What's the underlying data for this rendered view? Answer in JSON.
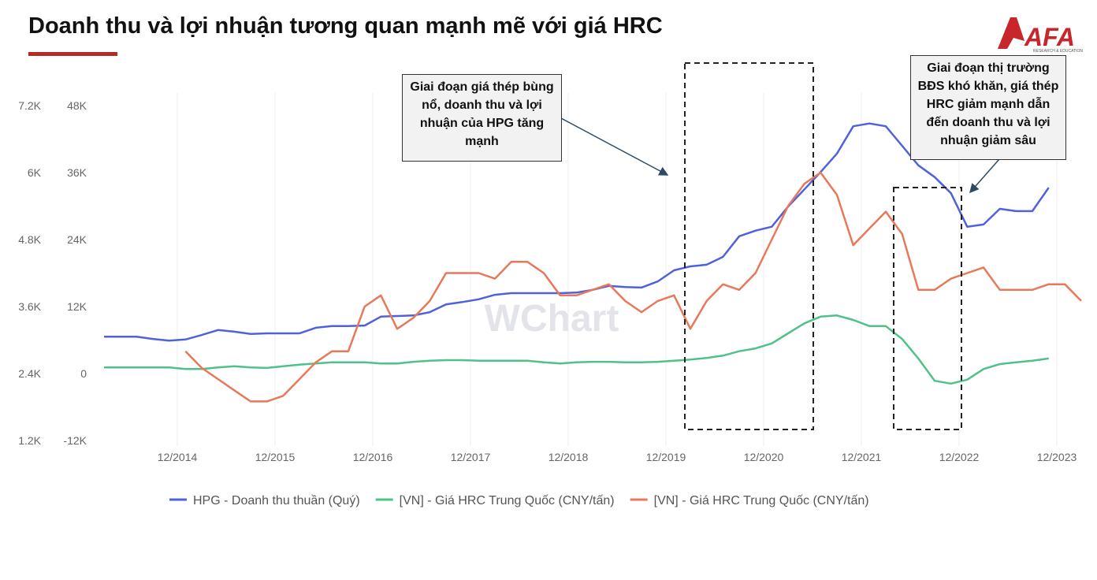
{
  "chart_data": {
    "type": "line",
    "title": "Doanh thu và lợi nhuận tương quan mạnh mẽ với giá HRC",
    "logo": "AFA",
    "logo_subtitle": "RESEARCH & EDUCATION",
    "watermark": "WChart",
    "annotations": [
      "Giai đoạn giá thép bùng nổ, doanh thu và lợi nhuận của HPG tăng mạnh",
      "Giai đoạn thị trường BĐS khó khăn, giá thép HRC giảm mạnh dẫn đến doanh thu và lợi nhuận giảm sâu"
    ],
    "x": [
      "03/2014",
      "05/2014",
      "07/2014",
      "09/2014",
      "11/2014",
      "01/2015",
      "03/2015",
      "05/2015",
      "07/2015",
      "09/2015",
      "11/2015",
      "01/2016",
      "03/2016",
      "05/2016",
      "07/2016",
      "09/2016",
      "11/2016",
      "01/2017",
      "03/2017",
      "05/2017",
      "07/2017",
      "09/2017",
      "11/2017",
      "01/2018",
      "03/2018",
      "05/2018",
      "07/2018",
      "09/2018",
      "11/2018",
      "01/2019",
      "03/2019",
      "05/2019",
      "07/2019",
      "09/2019",
      "11/2019",
      "01/2020",
      "03/2020",
      "05/2020",
      "07/2020",
      "09/2020",
      "11/2020",
      "01/2021",
      "03/2021",
      "05/2021",
      "07/2021",
      "09/2021",
      "11/2021",
      "01/2022",
      "03/2022",
      "05/2022",
      "07/2022",
      "09/2022",
      "11/2022",
      "01/2023",
      "03/2023",
      "05/2023",
      "07/2023",
      "09/2023",
      "11/2023",
      "01/2024",
      "03/2024"
    ],
    "xlim": [
      "03/2014",
      "03/2024"
    ],
    "xticks": [
      "12/2014",
      "12/2015",
      "12/2016",
      "12/2017",
      "12/2018",
      "12/2019",
      "12/2020",
      "12/2021",
      "12/2022",
      "12/2023"
    ],
    "xgrid": true,
    "ylim": [
      -12000,
      48000
    ],
    "yticks": [
      {
        "value": -12000,
        "label": "-12K"
      },
      0,
      {
        "value": 12000,
        "label": "12K"
      },
      {
        "value": 24000,
        "label": "24K"
      },
      {
        "value": 36000,
        "label": "36K"
      },
      {
        "value": 48000,
        "label": "48K"
      }
    ],
    "y2lim": [
      1200,
      7200
    ],
    "y2ticks": [
      {
        "value": 1200,
        "label": "1.2K"
      },
      {
        "value": 2400,
        "label": "2.4K"
      },
      {
        "value": 3600,
        "label": "3.6K"
      },
      {
        "value": 4800,
        "label": "4.8K"
      },
      {
        "value": 6000,
        "label": "6K"
      },
      {
        "value": 7200,
        "label": "7.2K"
      }
    ],
    "series": [
      {
        "name": "HPG - Doanh thu thuần (Quý)",
        "color": "#4f62dc",
        "values": [
          6600,
          6600,
          6600,
          6200,
          5900,
          6100,
          6900,
          7800,
          7500,
          7100,
          7200,
          7200,
          7200,
          8200,
          8500,
          8500,
          8600,
          10200,
          10300,
          10400,
          11000,
          12400,
          12800,
          13300,
          14100,
          14400,
          14400,
          14400,
          14400,
          14500,
          15000,
          15700,
          15500,
          15400,
          16500,
          18500,
          19200,
          19500,
          20900,
          24600,
          25600,
          26300,
          29900,
          33000,
          36100,
          39400,
          44300,
          44800,
          44300,
          40800,
          37300,
          35200,
          32300,
          26300,
          26700,
          29500,
          29100,
          29100,
          33300,
          null,
          null
        ]
      },
      {
        "name": "[VN] - Giá HRC Trung Quốc (CNY/tấn)",
        "color": "#4fc28a",
        "values": [
          1100,
          1100,
          1100,
          1100,
          1100,
          800,
          800,
          1100,
          1300,
          1100,
          1000,
          1300,
          1600,
          1800,
          2000,
          2000,
          2000,
          1800,
          1800,
          2100,
          2300,
          2400,
          2400,
          2300,
          2300,
          2300,
          2300,
          2000,
          1800,
          2000,
          2100,
          2100,
          2000,
          2000,
          2100,
          2300,
          2500,
          2800,
          3200,
          4000,
          4500,
          5400,
          7200,
          9000,
          10200,
          10400,
          9600,
          8500,
          8500,
          6200,
          2700,
          -1300,
          -1800,
          -1100,
          800,
          1700,
          2000,
          2300,
          2700,
          null,
          null
        ]
      },
      {
        "name": "[VN] - Giá HRC Trung Quốc (CNY/tấn)",
        "color": "#e8785a",
        "axis": "y2",
        "values": [
          null,
          null,
          null,
          null,
          null,
          2800,
          2500,
          2300,
          2100,
          1900,
          1900,
          2000,
          2300,
          2600,
          2800,
          2800,
          3600,
          3800,
          3200,
          3400,
          3700,
          4200,
          4200,
          4200,
          4100,
          4400,
          4400,
          4200,
          3800,
          3800,
          3900,
          4000,
          3700,
          3500,
          3700,
          3800,
          3200,
          3700,
          4000,
          3900,
          4200,
          4800,
          5400,
          5800,
          6000,
          5600,
          4700,
          5000,
          5300,
          4900,
          3900,
          3900,
          4100,
          4200,
          4300,
          3900,
          3900,
          3900,
          4000,
          4000,
          3700
        ]
      }
    ]
  }
}
